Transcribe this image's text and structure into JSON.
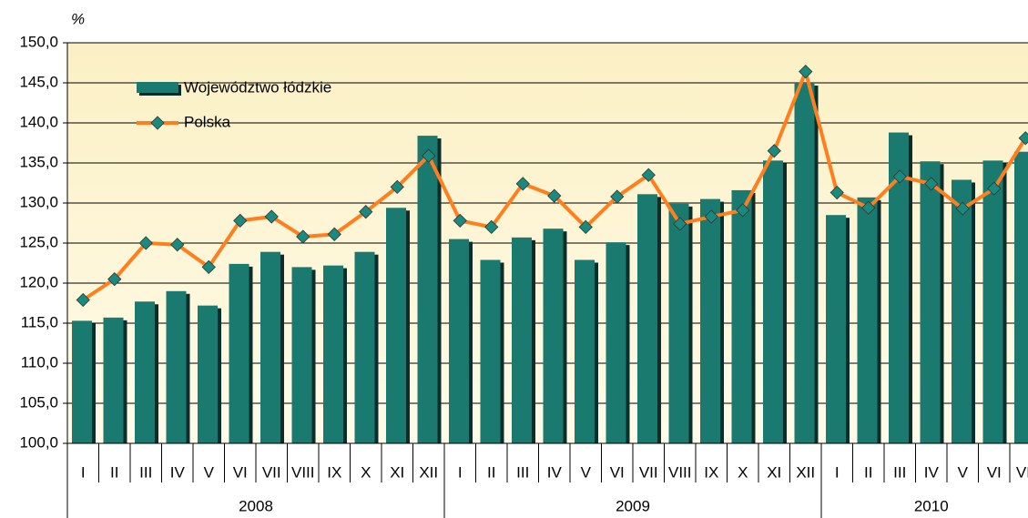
{
  "chart_data": {
    "type": "bar_line",
    "y_label": "%",
    "categories": [
      "I",
      "II",
      "III",
      "IV",
      "V",
      "VI",
      "VII",
      "VIII",
      "IX",
      "X",
      "XI",
      "XII",
      "I",
      "II",
      "III",
      "IV",
      "V",
      "VI",
      "VII",
      "VIII",
      "IX",
      "X",
      "XI",
      "XII",
      "I",
      "II",
      "III",
      "IV",
      "V",
      "VI",
      "VII"
    ],
    "years": [
      "2008",
      "2009",
      "2010"
    ],
    "series": [
      {
        "name": "Województwo łódzkie",
        "type": "bar",
        "color": "#1b7a70",
        "values": [
          115.3,
          115.7,
          117.7,
          119.0,
          117.2,
          122.4,
          123.9,
          122.0,
          122.2,
          123.9,
          129.4,
          138.4,
          125.5,
          122.9,
          125.7,
          126.8,
          122.9,
          125.1,
          131.1,
          129.9,
          130.5,
          131.6,
          135.3,
          145.0,
          128.5,
          130.7,
          138.8,
          135.2,
          132.9,
          135.3,
          136.4
        ]
      },
      {
        "name": "Polska",
        "type": "line",
        "color": "#ff7f1e",
        "marker_color": "#1b8a7e",
        "values": [
          117.9,
          120.5,
          125.0,
          124.8,
          122.0,
          127.8,
          128.3,
          125.8,
          126.1,
          128.9,
          132.0,
          135.9,
          127.8,
          127.0,
          132.4,
          130.9,
          127.0,
          130.8,
          133.5,
          127.4,
          128.3,
          129.1,
          136.5,
          146.4,
          131.3,
          129.4,
          133.3,
          132.4,
          129.3,
          131.8,
          138.1
        ]
      }
    ],
    "ylim": [
      100,
      150
    ],
    "yticks": [
      {
        "value": 100,
        "label": "100,0"
      },
      {
        "value": 105,
        "label": "105,0"
      },
      {
        "value": 110,
        "label": "110,0"
      },
      {
        "value": 115,
        "label": "115,0"
      },
      {
        "value": 120,
        "label": "120,0"
      },
      {
        "value": 125,
        "label": "125,0"
      },
      {
        "value": 130,
        "label": "130,0"
      },
      {
        "value": 135,
        "label": "135,0"
      },
      {
        "value": 140,
        "label": "140,0"
      },
      {
        "value": 145,
        "label": "145,0"
      },
      {
        "value": 150,
        "label": "150,0"
      }
    ],
    "grid": true
  }
}
